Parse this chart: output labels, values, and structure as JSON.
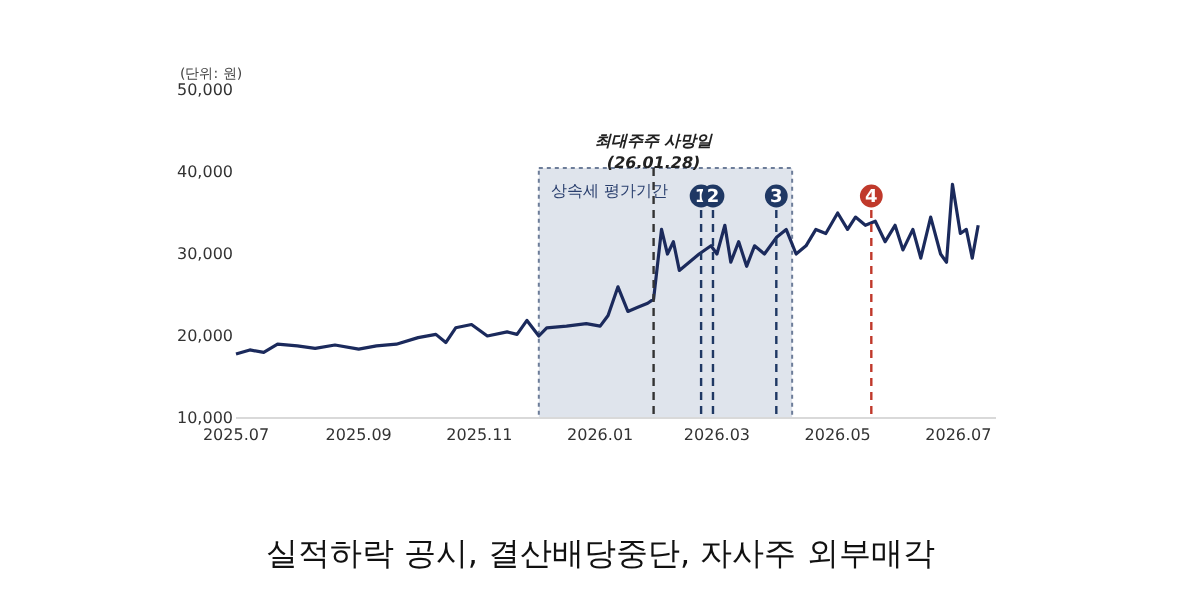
{
  "chart_data": {
    "type": "line",
    "xlim": [
      "2025-07-01",
      "2026-07-20"
    ],
    "xticks": [
      {
        "value": "2025-07-01",
        "label": "2025.07"
      },
      {
        "value": "2025-09-01",
        "label": "2025.09"
      },
      {
        "value": "2025-11-01",
        "label": "2025.11"
      },
      {
        "value": "2026-01-01",
        "label": "2026.01"
      },
      {
        "value": "2026-03-01",
        "label": "2026.03"
      },
      {
        "value": "2026-05-01",
        "label": "2026.05"
      },
      {
        "value": "2026-07-01",
        "label": "2026.07"
      }
    ],
    "ylim": [
      10000,
      50000
    ],
    "yticks": [
      {
        "value": 10000,
        "label": "10,000"
      },
      {
        "value": 20000,
        "label": "20,000"
      },
      {
        "value": 30000,
        "label": "30,000"
      },
      {
        "value": 40000,
        "label": "40,000"
      },
      {
        "value": 50000,
        "label": "50,000"
      }
    ],
    "grid": false,
    "marker": "none",
    "line_style": "solid",
    "series": [
      {
        "color": "#1b2a5c",
        "x": [
          "2025-07-01",
          "2025-07-08",
          "2025-07-15",
          "2025-07-22",
          "2025-08-01",
          "2025-08-10",
          "2025-08-20",
          "2025-09-01",
          "2025-09-10",
          "2025-09-20",
          "2025-10-01",
          "2025-10-10",
          "2025-10-15",
          "2025-10-20",
          "2025-10-28",
          "2025-11-05",
          "2025-11-15",
          "2025-11-20",
          "2025-11-25",
          "2025-12-01",
          "2025-12-05",
          "2025-12-15",
          "2025-12-25",
          "2026-01-01",
          "2026-01-05",
          "2026-01-10",
          "2026-01-15",
          "2026-01-20",
          "2026-01-25",
          "2026-01-28",
          "2026-02-01",
          "2026-02-04",
          "2026-02-07",
          "2026-02-10",
          "2026-02-15",
          "2026-02-20",
          "2026-02-26",
          "2026-03-01",
          "2026-03-05",
          "2026-03-08",
          "2026-03-12",
          "2026-03-16",
          "2026-03-20",
          "2026-03-25",
          "2026-03-31",
          "2026-04-05",
          "2026-04-10",
          "2026-04-15",
          "2026-04-20",
          "2026-04-25",
          "2026-05-01",
          "2026-05-06",
          "2026-05-10",
          "2026-05-15",
          "2026-05-20",
          "2026-05-25",
          "2026-05-30",
          "2026-06-03",
          "2026-06-08",
          "2026-06-12",
          "2026-06-17",
          "2026-06-22",
          "2026-06-25",
          "2026-06-28",
          "2026-07-02",
          "2026-07-05",
          "2026-07-08",
          "2026-07-11"
        ],
        "values": [
          17800,
          18300,
          18000,
          19000,
          18800,
          18500,
          18900,
          18400,
          18800,
          19000,
          19800,
          20200,
          19200,
          21000,
          21400,
          20000,
          20500,
          20200,
          21900,
          20000,
          21000,
          21200,
          21500,
          21200,
          22500,
          26000,
          23000,
          23500,
          24000,
          24500,
          33000,
          30000,
          31500,
          28000,
          29000,
          30000,
          31000,
          30000,
          33500,
          29000,
          31500,
          28500,
          31000,
          30000,
          32000,
          33000,
          30000,
          31000,
          33000,
          32500,
          35000,
          33000,
          34500,
          33500,
          34000,
          31500,
          33500,
          30500,
          33000,
          29500,
          34500,
          30000,
          29000,
          38500,
          32500,
          33000,
          29500,
          33500
        ]
      }
    ],
    "bands": [
      {
        "axis": "x",
        "from": "2025-12-01",
        "to": "2026-04-08",
        "label": "상속세 평가기간",
        "color": "#dfe4ec"
      }
    ],
    "ref_lines": [
      {
        "axis": "x",
        "value": "2026-01-28",
        "label": "최대주주 사망일\n(26.01.28)",
        "color": "#333333",
        "line_style": "dashed"
      },
      {
        "axis": "x",
        "value": "2026-02-21",
        "label": "1",
        "color": "#1f3864",
        "line_style": "dashed"
      },
      {
        "axis": "x",
        "value": "2026-02-27",
        "label": "2",
        "color": "#1f3864",
        "line_style": "dashed"
      },
      {
        "axis": "x",
        "value": "2026-03-31",
        "label": "3",
        "color": "#1f3864",
        "line_style": "dashed"
      },
      {
        "axis": "x",
        "value": "2026-05-18",
        "label": "4",
        "color": "#c0392b",
        "line_style": "dashed"
      }
    ],
    "annotations": [
      "(단위: 원)",
      "실적하락 공시, 결산배당중단, 자사주 외부매각"
    ]
  }
}
